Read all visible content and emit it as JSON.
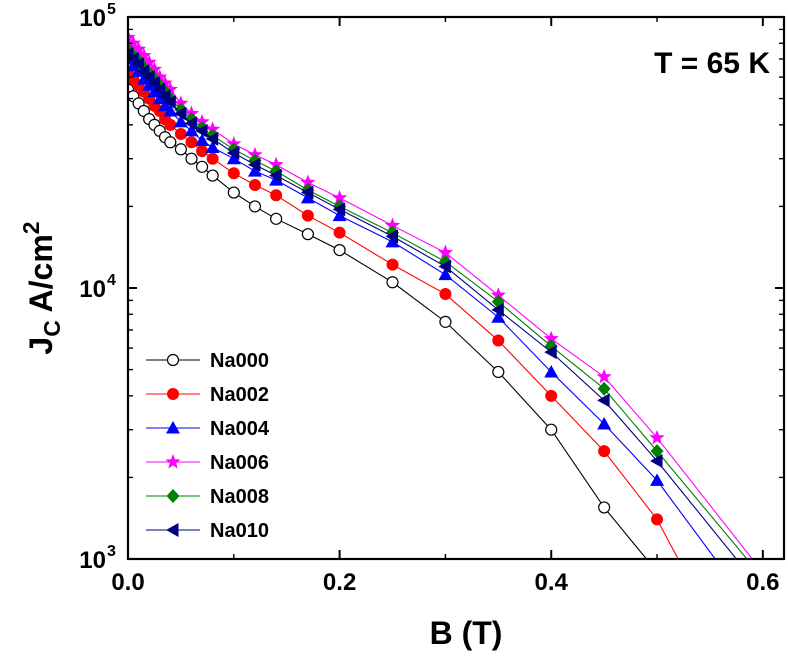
{
  "chart_data": {
    "type": "line",
    "title": "",
    "annotation": "T = 65 K",
    "xlabel": "B (T)",
    "ylabel": {
      "main": "J",
      "sub": "C",
      "unit": " A/cm",
      "sup": "2"
    },
    "xlim": [
      0,
      0.62
    ],
    "ylim": [
      1000,
      100000
    ],
    "yscale": "log",
    "x_ticks": [
      "0.0",
      "0.2",
      "0.4",
      "0.6"
    ],
    "y_ticks": [
      {
        "base": "10",
        "exp": "3"
      },
      {
        "base": "10",
        "exp": "4"
      },
      {
        "base": "10",
        "exp": "5"
      }
    ],
    "grid": false,
    "legend_position": "lower-left",
    "series": [
      {
        "name": "Na000",
        "color": "#000000",
        "marker": "circle-open",
        "x": [
          0.0,
          0.005,
          0.01,
          0.015,
          0.02,
          0.025,
          0.03,
          0.035,
          0.04,
          0.05,
          0.06,
          0.07,
          0.08,
          0.1,
          0.12,
          0.14,
          0.17,
          0.2,
          0.25,
          0.3,
          0.35,
          0.4,
          0.45,
          0.49
        ],
        "y": [
          54000,
          51000,
          48000,
          45000,
          42000,
          40000,
          38000,
          36000,
          34500,
          32500,
          30000,
          28000,
          26000,
          22500,
          20000,
          18000,
          15800,
          13800,
          10500,
          7500,
          4900,
          3000,
          1550,
          1000
        ]
      },
      {
        "name": "Na002",
        "color": "#ff0000",
        "marker": "circle-filled",
        "x": [
          0.0,
          0.005,
          0.01,
          0.015,
          0.02,
          0.025,
          0.03,
          0.035,
          0.04,
          0.05,
          0.06,
          0.07,
          0.08,
          0.1,
          0.12,
          0.14,
          0.17,
          0.2,
          0.25,
          0.3,
          0.35,
          0.4,
          0.45,
          0.5,
          0.52
        ],
        "y": [
          62000,
          59000,
          56000,
          53000,
          50000,
          47000,
          45000,
          42000,
          40000,
          37000,
          34500,
          32000,
          30000,
          26500,
          24000,
          22000,
          18500,
          16000,
          12200,
          9500,
          6400,
          4000,
          2500,
          1400,
          1000
        ]
      },
      {
        "name": "Na004",
        "color": "#0000ff",
        "marker": "triangle-up",
        "x": [
          0.0,
          0.005,
          0.01,
          0.015,
          0.02,
          0.025,
          0.03,
          0.035,
          0.04,
          0.05,
          0.06,
          0.07,
          0.08,
          0.1,
          0.12,
          0.14,
          0.17,
          0.2,
          0.25,
          0.3,
          0.35,
          0.4,
          0.45,
          0.5,
          0.555
        ],
        "y": [
          70000,
          66000,
          63000,
          59000,
          56000,
          53000,
          50000,
          47000,
          45000,
          41000,
          38000,
          35000,
          33000,
          30000,
          27000,
          25000,
          21500,
          18500,
          14800,
          11200,
          7800,
          4900,
          3150,
          1950,
          1000
        ]
      },
      {
        "name": "Na006",
        "color": "#ff00ff",
        "marker": "star",
        "x": [
          0.0,
          0.005,
          0.01,
          0.015,
          0.02,
          0.025,
          0.03,
          0.035,
          0.04,
          0.05,
          0.06,
          0.07,
          0.08,
          0.1,
          0.12,
          0.14,
          0.17,
          0.2,
          0.25,
          0.3,
          0.35,
          0.4,
          0.45,
          0.5,
          0.59
        ],
        "y": [
          84000,
          80000,
          76000,
          72000,
          68000,
          64000,
          60000,
          57000,
          54000,
          48000,
          44000,
          41000,
          38500,
          34000,
          31000,
          28500,
          24500,
          21500,
          17000,
          13500,
          9400,
          6500,
          4700,
          2800,
          1000
        ]
      },
      {
        "name": "Na008",
        "color": "#008000",
        "marker": "diamond",
        "x": [
          0.0,
          0.005,
          0.01,
          0.015,
          0.02,
          0.025,
          0.03,
          0.035,
          0.04,
          0.05,
          0.06,
          0.07,
          0.08,
          0.1,
          0.12,
          0.14,
          0.17,
          0.2,
          0.25,
          0.3,
          0.35,
          0.4,
          0.45,
          0.5,
          0.585
        ],
        "y": [
          76000,
          72000,
          69000,
          65000,
          62000,
          59000,
          56000,
          53000,
          50000,
          45500,
          42000,
          39000,
          36500,
          32500,
          29500,
          27000,
          23000,
          20000,
          16000,
          12500,
          8900,
          6100,
          4250,
          2500,
          1000
        ]
      },
      {
        "name": "Na010",
        "color": "#000080",
        "marker": "triangle-left",
        "x": [
          0.0,
          0.005,
          0.01,
          0.015,
          0.02,
          0.025,
          0.03,
          0.035,
          0.04,
          0.05,
          0.06,
          0.07,
          0.08,
          0.1,
          0.12,
          0.14,
          0.17,
          0.2,
          0.25,
          0.3,
          0.35,
          0.4,
          0.45,
          0.5,
          0.575
        ],
        "y": [
          73000,
          70000,
          67000,
          63000,
          60000,
          57000,
          54000,
          51000,
          48500,
          44000,
          40500,
          38000,
          35500,
          31500,
          28500,
          26000,
          22500,
          19500,
          15500,
          12000,
          8300,
          5800,
          3850,
          2300,
          1000
        ]
      }
    ]
  }
}
